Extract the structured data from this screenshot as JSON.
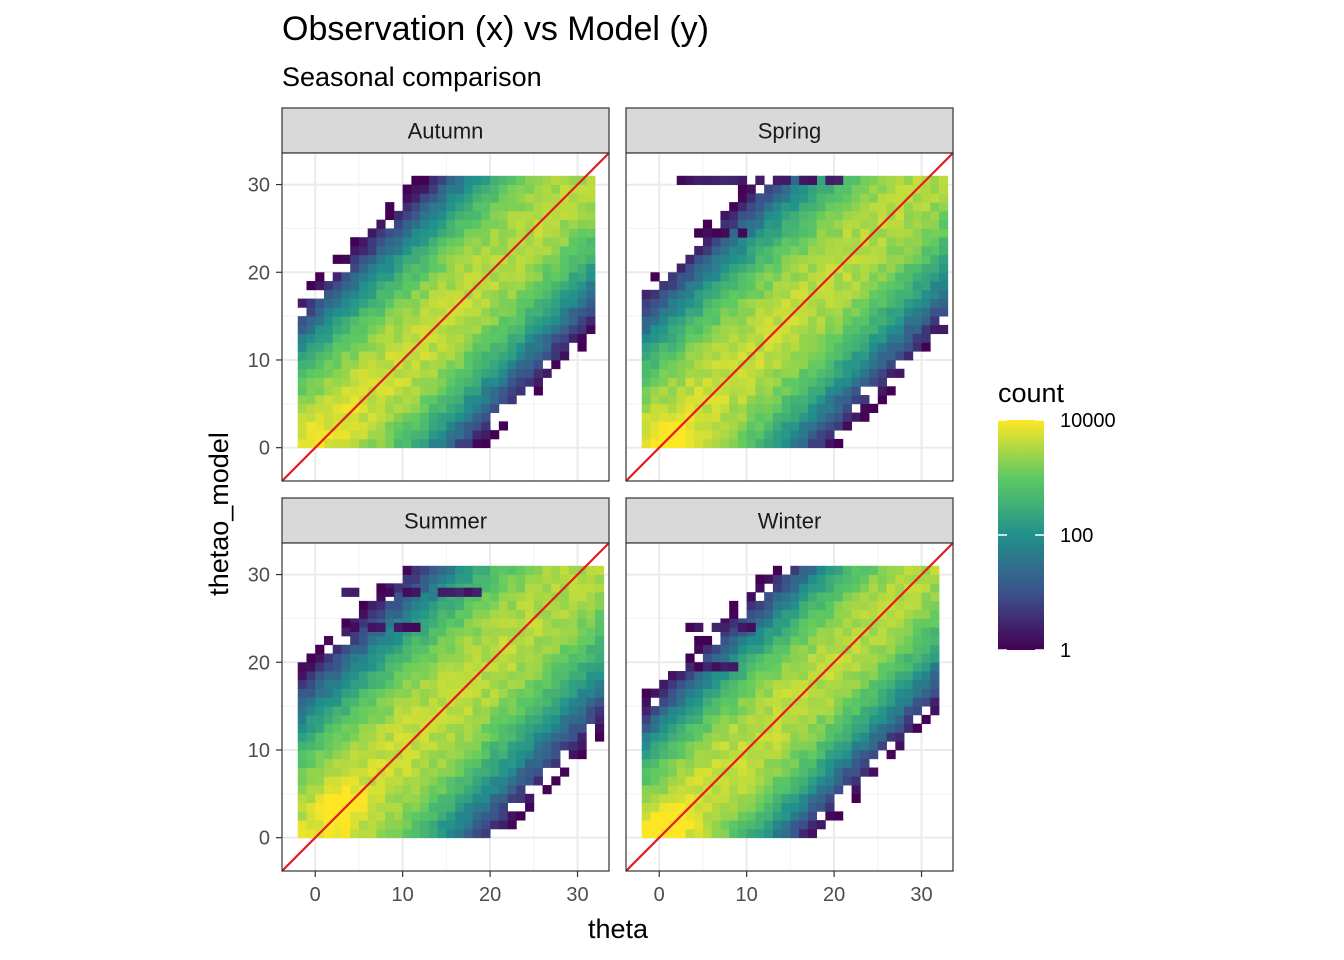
{
  "chart_data": {
    "type": "heatmap",
    "title": "Observation (x) vs Model (y)",
    "subtitle": "Seasonal comparison",
    "xlabel": "theta",
    "ylabel": "thetao_model",
    "xlim": [
      -3.8,
      33.6
    ],
    "ylim": [
      -3.8,
      33.6
    ],
    "x_ticks": [
      0,
      10,
      20,
      30
    ],
    "y_ticks": [
      0,
      10,
      20,
      30
    ],
    "grid": true,
    "reference_line": {
      "slope": 1,
      "intercept": 0,
      "color": "#e41a1c"
    },
    "bin_width": 1,
    "legend": {
      "title": "count",
      "position": "right",
      "scale": "log10",
      "breaks": [
        1,
        100,
        10000
      ],
      "break_labels": [
        "1",
        "100",
        "10000"
      ],
      "colormap": "viridis"
    },
    "panels": [
      {
        "name": "Autumn",
        "density": {
          "x_min": -2,
          "x_max": 31,
          "y_min": 0,
          "y_max": 30.5,
          "spread": 3.2
        },
        "hot_spots": [
          {
            "x": 0,
            "y": 0.5,
            "count": 3000
          },
          {
            "x": 3,
            "y": 3,
            "count": 1500
          }
        ],
        "outlier_rows": []
      },
      {
        "name": "Spring",
        "density": {
          "x_min": -2,
          "x_max": 32,
          "y_min": 0,
          "y_max": 30.5,
          "spread": 3.4
        },
        "hot_spots": [
          {
            "x": 0,
            "y": 0.5,
            "count": 10000
          },
          {
            "x": 2,
            "y": 1,
            "count": 6000
          }
        ],
        "outlier_rows": [
          {
            "y": 30,
            "x_from": 2,
            "x_to": 20
          },
          {
            "y": 24,
            "x_from": 4,
            "x_to": 10
          }
        ]
      },
      {
        "name": "Summer",
        "density": {
          "x_min": -2,
          "x_max": 32,
          "y_min": 0,
          "y_max": 30.5,
          "spread": 3.6
        },
        "hot_spots": [
          {
            "x": 2,
            "y": 2,
            "count": 10000
          },
          {
            "x": 3,
            "y": 4,
            "count": 6000
          }
        ],
        "outlier_rows": [
          {
            "y": 27.5,
            "x_from": 3,
            "x_to": 18
          },
          {
            "y": 23.5,
            "x_from": 4,
            "x_to": 12
          }
        ]
      },
      {
        "name": "Winter",
        "density": {
          "x_min": -2,
          "x_max": 31,
          "y_min": 0,
          "y_max": 30,
          "spread": 3.0
        },
        "hot_spots": [
          {
            "x": 0,
            "y": 0.5,
            "count": 10000
          },
          {
            "x": 2,
            "y": 1.5,
            "count": 6000
          }
        ],
        "outlier_rows": [
          {
            "y": 23.5,
            "x_from": 3,
            "x_to": 13
          },
          {
            "y": 19,
            "x_from": 3,
            "x_to": 8
          }
        ]
      }
    ]
  }
}
